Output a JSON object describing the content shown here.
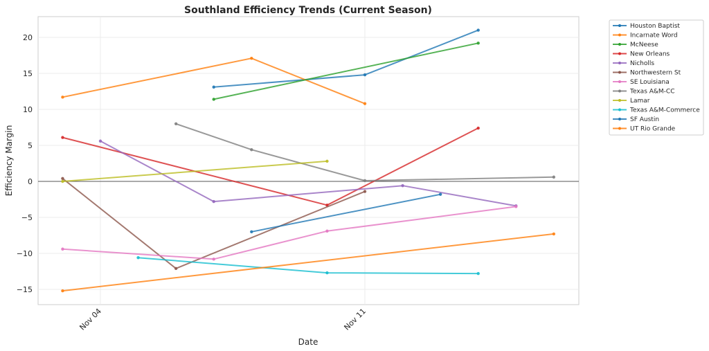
{
  "chart_data": {
    "type": "line",
    "title": "Southland Efficiency Trends (Current Season)",
    "xlabel": "Date",
    "ylabel": "Efficiency Margin",
    "x_range_days": [
      "Nov 02 (approx)",
      "Nov 16 (approx)"
    ],
    "x_tick_labels": [
      {
        "label": "Nov 04",
        "day": 4
      },
      {
        "label": "Nov 11",
        "day": 11
      }
    ],
    "ylim": [
      -17,
      23
    ],
    "y_ticks": [
      -15,
      -10,
      -5,
      0,
      5,
      10,
      15,
      20
    ],
    "y_tick_labels": [
      "−15",
      "−10",
      "−5",
      "0",
      "5",
      "10",
      "15",
      "20"
    ],
    "grid": true,
    "zero_line": true,
    "legend_position": "outside-top-right",
    "series": [
      {
        "name": "Houston Baptist",
        "color": "#1f77b4",
        "x": [
          7,
          11,
          14
        ],
        "y": [
          13.1,
          14.8,
          21.0
        ]
      },
      {
        "name": "Incarnate Word",
        "color": "#ff7f0e",
        "x": [
          3,
          8,
          11
        ],
        "y": [
          11.7,
          17.1,
          10.8
        ]
      },
      {
        "name": "McNeese",
        "color": "#2ca02c",
        "x": [
          7,
          14
        ],
        "y": [
          11.4,
          19.2
        ]
      },
      {
        "name": "New Orleans",
        "color": "#d62728",
        "x": [
          3,
          10,
          14
        ],
        "y": [
          6.1,
          -3.3,
          7.4
        ]
      },
      {
        "name": "Nicholls",
        "color": "#9467bd",
        "x": [
          4,
          7,
          12,
          15
        ],
        "y": [
          5.6,
          -2.8,
          -0.6,
          -3.4
        ]
      },
      {
        "name": "Northwestern St",
        "color": "#8c564b",
        "x": [
          3,
          6,
          11
        ],
        "y": [
          0.4,
          -12.1,
          -1.4
        ]
      },
      {
        "name": "SE Louisiana",
        "color": "#e377c2",
        "x": [
          3,
          7,
          10,
          15
        ],
        "y": [
          -9.4,
          -10.8,
          -6.9,
          -3.5
        ]
      },
      {
        "name": "Texas A&M-CC",
        "color": "#7f7f7f",
        "x": [
          6,
          8,
          11,
          16
        ],
        "y": [
          8.0,
          4.4,
          0.1,
          0.6
        ]
      },
      {
        "name": "Lamar",
        "color": "#bcbd22",
        "x": [
          3,
          10
        ],
        "y": [
          0.0,
          2.8
        ]
      },
      {
        "name": "Texas A&M-Commerce",
        "color": "#17becf",
        "x": [
          5,
          10,
          14
        ],
        "y": [
          -10.6,
          -12.7,
          -12.8
        ]
      },
      {
        "name": "SF Austin",
        "color": "#1f77b4",
        "x": [
          8,
          13
        ],
        "y": [
          -7.0,
          -1.8
        ]
      },
      {
        "name": "UT Rio Grande",
        "color": "#ff7f0e",
        "x": [
          3,
          16
        ],
        "y": [
          -15.2,
          -7.3
        ]
      }
    ]
  }
}
